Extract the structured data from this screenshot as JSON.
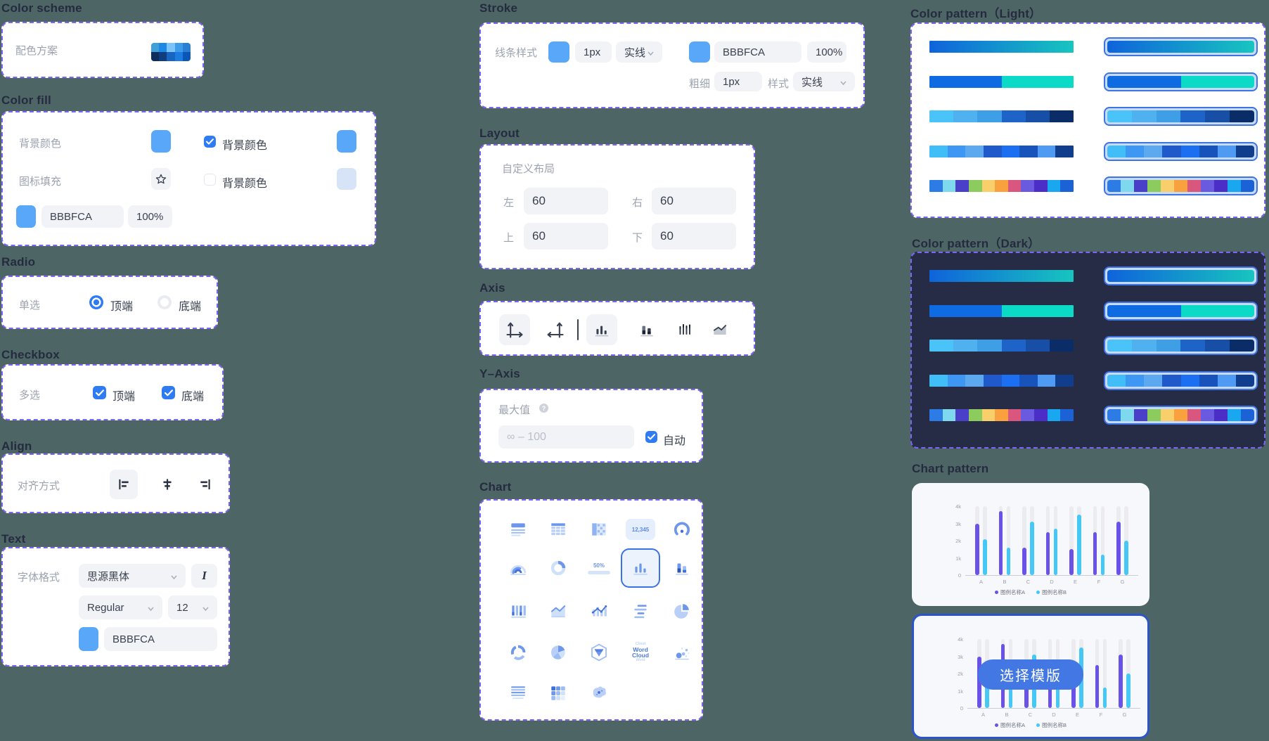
{
  "page": {
    "background": "#4E6566"
  },
  "colors": {
    "dashed_border": "#7C64F5",
    "panel_bg": "#FFFFFF",
    "dark_panel_bg": "#262C45",
    "accent_blue": "#2F7BF4",
    "swatch_blue": "#59A7F8",
    "swatch_light_blue": "#D7E4F8",
    "frame_border": "#3E73E3",
    "card_selected_border": "#2C55CB",
    "button_bg": "#4377E3",
    "series_a_color": "#6A52E9",
    "series_b_color": "#45C8F5"
  },
  "sections": {
    "color_scheme": {
      "title": "Color scheme",
      "label": "配色方案",
      "palette": {
        "top": [
          "#3E9FD9",
          "#1E88E5",
          "#7CC4F8",
          "#3D9BE9",
          "#2A7FD4"
        ],
        "bottom": [
          "#0C2D5E",
          "#0F3D7E",
          "#1765C1",
          "#1E7BE0",
          "#0B57B8"
        ]
      }
    },
    "color_fill": {
      "title": "Color fill",
      "bg_color_label": "背景颜色",
      "bg_checkbox_label": "背景颜色",
      "icon_fill_label": "图标填充",
      "icon_checkbox_label": "背景颜色",
      "hex_value": "BBBFCA",
      "opacity_value": "100%"
    },
    "radio": {
      "title": "Radio",
      "label": "单选",
      "options": [
        {
          "label": "顶端",
          "selected": true
        },
        {
          "label": "底端",
          "selected": false
        }
      ]
    },
    "checkbox": {
      "title": "Checkbox",
      "label": "多选",
      "options": [
        {
          "label": "顶端",
          "checked": true
        },
        {
          "label": "底端",
          "checked": true
        }
      ]
    },
    "align": {
      "title": "Align",
      "label": "对齐方式",
      "options": [
        {
          "icon": "align-left-icon",
          "selected": true
        },
        {
          "icon": "align-center-icon",
          "selected": false
        },
        {
          "icon": "align-right-icon",
          "selected": false
        }
      ]
    },
    "text": {
      "title": "Text",
      "label": "字体格式",
      "font_family": "思源黑体",
      "font_style": "Regular",
      "font_size": "12",
      "hex_value": "BBBFCA"
    },
    "stroke": {
      "title": "Stroke",
      "label": "线条样式",
      "width_value": "1px",
      "style_value": "实线",
      "hex_value": "BBBFCA",
      "opacity_value": "100%",
      "weight_label": "粗细",
      "weight_value": "1px",
      "style_label": "样式",
      "style_value_2": "实线"
    },
    "layout": {
      "title": "Layout",
      "label": "自定义布局",
      "fields": [
        {
          "label": "左",
          "value": "60"
        },
        {
          "label": "右",
          "value": "60"
        },
        {
          "label": "上",
          "value": "60"
        },
        {
          "label": "下",
          "value": "60"
        }
      ]
    },
    "axis": {
      "title": "Axis",
      "items": [
        {
          "icon": "axis-xy-icon",
          "selected": true
        },
        {
          "icon": "axis-yx-icon",
          "selected": false
        },
        {
          "divider": true
        },
        {
          "icon": "bar-chart-icon",
          "selected": true
        },
        {
          "icon": "stacked-bar-icon",
          "selected": false
        },
        {
          "icon": "thin-bars-icon",
          "selected": false
        },
        {
          "icon": "area-chart-icon",
          "selected": false
        }
      ]
    },
    "y_axis": {
      "title": "Y–Axis",
      "max_label": "最大值",
      "input_placeholder": "∞ – 100",
      "auto_label": "自动",
      "auto_checked": true
    },
    "chart": {
      "title": "Chart",
      "number_card_value": "12,345",
      "progress_value": "50%",
      "word_cloud_words": [
        "Word",
        "Cloud"
      ],
      "items": [
        {
          "icon": "text-card-icon"
        },
        {
          "icon": "table-icon"
        },
        {
          "icon": "pivot-table-icon"
        },
        {
          "icon": "number-card-icon"
        },
        {
          "icon": "gauge-icon"
        },
        {
          "icon": "semi-gauge-icon"
        },
        {
          "icon": "donut-icon"
        },
        {
          "icon": "progress-bar-icon"
        },
        {
          "icon": "bar-chart-icon",
          "selected": true
        },
        {
          "icon": "stacked-column-icon"
        },
        {
          "icon": "column-chart-icon"
        },
        {
          "icon": "area-chart-icon"
        },
        {
          "icon": "combo-chart-icon"
        },
        {
          "icon": "horizontal-bars-icon"
        },
        {
          "icon": "pie-chart-icon"
        },
        {
          "icon": "ring-chart-icon"
        },
        {
          "icon": "pie-segments-icon"
        },
        {
          "icon": "funnel-3d-icon"
        },
        {
          "icon": "word-cloud-icon"
        },
        {
          "icon": "bubble-chart-icon"
        },
        {
          "icon": "text-lines-icon"
        },
        {
          "icon": "heatmap-icon"
        },
        {
          "icon": "china-map-icon"
        }
      ]
    },
    "color_pattern_light": {
      "title": "Color pattern（Light）"
    },
    "color_pattern_dark": {
      "title": "Color pattern（Dark）"
    },
    "chart_pattern": {
      "title": "Chart pattern",
      "button_label": "选择模版",
      "cards": [
        {
          "selected": false
        },
        {
          "selected": true
        }
      ]
    }
  },
  "color_bars": [
    {
      "type": "gradient",
      "stops": [
        "#0F63DB",
        "#17C5BF"
      ]
    },
    {
      "type": "segments",
      "colors": [
        "#0E6BE2",
        "#0BDBC6"
      ]
    },
    {
      "type": "segments",
      "colors": [
        "#49C3F8",
        "#4FB1EF",
        "#3E9EE6",
        "#1E63C8",
        "#164FA5",
        "#0B2D67"
      ]
    },
    {
      "type": "segments",
      "colors": [
        "#41BDF7",
        "#3E97F2",
        "#5CA9EF",
        "#2059C9",
        "#1D6FF2",
        "#1853BC",
        "#4F9BF3",
        "#103E8C"
      ]
    },
    {
      "type": "segments",
      "colors": [
        "#2D7BE5",
        "#7FD9EE",
        "#4A3FC9",
        "#8CCB5E",
        "#F9CF6B",
        "#F9A03F",
        "#D9577F",
        "#6A5AE0",
        "#4B2EC7",
        "#19A8F0",
        "#1B62D6"
      ]
    }
  ],
  "chart_data": {
    "type": "bar",
    "title": "",
    "categories": [
      "A",
      "B",
      "C",
      "D",
      "E",
      "F",
      "G"
    ],
    "series": [
      {
        "name": "图例名称A",
        "color": "#6A52E9",
        "values": [
          3000,
          3700,
          1600,
          2500,
          1500,
          2500,
          3100
        ]
      },
      {
        "name": "图例名称B",
        "color": "#45C8F5",
        "values": [
          2100,
          1600,
          3100,
          2700,
          3500,
          1200,
          2000
        ]
      }
    ],
    "ylim": [
      0,
      4000
    ],
    "yticks": [
      "4k",
      "3k",
      "2k",
      "1k",
      "0"
    ],
    "legend_position": "bottom",
    "grid": false,
    "background_track": true
  }
}
